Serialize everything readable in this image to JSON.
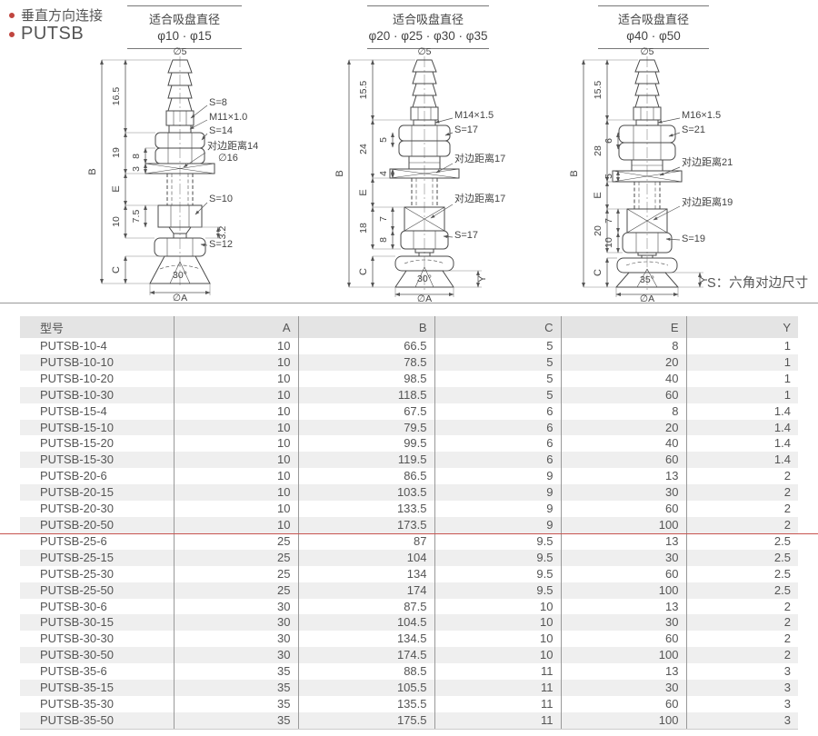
{
  "page": {
    "bullet1": "垂直方向连接",
    "bullet2": "PUTSB",
    "s_note": "S：六角对边尺寸"
  },
  "d1": {
    "title": "适合吸盘直径",
    "range": "φ10 · φ15",
    "top_dia": "∅5",
    "b": "B",
    "h1": "16.5",
    "h2": "19",
    "h2a": "8",
    "h2b": "3",
    "e": "E",
    "h3": "10",
    "h3a": "7.5",
    "h3b": "3.2",
    "c": "C",
    "s1": "S=8",
    "thread": "M11×1.0",
    "s2": "S=14",
    "flat": "对边距离14",
    "dia16": "∅16",
    "s3": "S=10",
    "s4": "S=12",
    "angle": "30°",
    "bot_dia": "∅A"
  },
  "d2": {
    "title": "适合吸盘直径",
    "range": "φ20 · φ25 · φ30 · φ35",
    "top_dia": "∅5",
    "b": "B",
    "h1": "15.5",
    "h2": "24",
    "h2a": "5",
    "h2b": "4",
    "e": "E",
    "h3": "18",
    "h3a": "7",
    "h3b": "8",
    "c": "C",
    "thread": "M14×1.5",
    "s1": "S=17",
    "flat1": "对边距离17",
    "flat2": "对边距离17",
    "s2": "S=17",
    "angle": "30°",
    "y": "Y",
    "bot_dia": "∅A"
  },
  "d3": {
    "title": "适合吸盘直径",
    "range": "φ40 · φ50",
    "top_dia": "∅5",
    "b": "B",
    "h1": "15.5",
    "h2": "28",
    "h2a": "6",
    "h2b": "5",
    "e": "E",
    "h3": "20",
    "h3a": "7",
    "h3b": "10",
    "c": "C",
    "thread": "M16×1.5",
    "s1": "S=21",
    "flat1": "对边距离21",
    "flat2": "对边距离19",
    "s2": "S=19",
    "angle": "35°",
    "y": "Y",
    "bot_dia": "∅A"
  },
  "table": {
    "columns": [
      "型号",
      "A",
      "B",
      "C",
      "E",
      "Y"
    ],
    "red_divider_after": "PUTSB-20-50",
    "rows": [
      [
        "PUTSB-10-4",
        "10",
        "66.5",
        "5",
        "8",
        "1"
      ],
      [
        "PUTSB-10-10",
        "10",
        "78.5",
        "5",
        "20",
        "1"
      ],
      [
        "PUTSB-10-20",
        "10",
        "98.5",
        "5",
        "40",
        "1"
      ],
      [
        "PUTSB-10-30",
        "10",
        "118.5",
        "5",
        "60",
        "1"
      ],
      [
        "PUTSB-15-4",
        "10",
        "67.5",
        "6",
        "8",
        "1.4"
      ],
      [
        "PUTSB-15-10",
        "10",
        "79.5",
        "6",
        "20",
        "1.4"
      ],
      [
        "PUTSB-15-20",
        "10",
        "99.5",
        "6",
        "40",
        "1.4"
      ],
      [
        "PUTSB-15-30",
        "10",
        "119.5",
        "6",
        "60",
        "1.4"
      ],
      [
        "PUTSB-20-6",
        "10",
        "86.5",
        "9",
        "13",
        "2"
      ],
      [
        "PUTSB-20-15",
        "10",
        "103.5",
        "9",
        "30",
        "2"
      ],
      [
        "PUTSB-20-30",
        "10",
        "133.5",
        "9",
        "60",
        "2"
      ],
      [
        "PUTSB-20-50",
        "10",
        "173.5",
        "9",
        "100",
        "2"
      ],
      [
        "PUTSB-25-6",
        "25",
        "87",
        "9.5",
        "13",
        "2.5"
      ],
      [
        "PUTSB-25-15",
        "25",
        "104",
        "9.5",
        "30",
        "2.5"
      ],
      [
        "PUTSB-25-30",
        "25",
        "134",
        "9.5",
        "60",
        "2.5"
      ],
      [
        "PUTSB-25-50",
        "25",
        "174",
        "9.5",
        "100",
        "2.5"
      ],
      [
        "PUTSB-30-6",
        "30",
        "87.5",
        "10",
        "13",
        "2"
      ],
      [
        "PUTSB-30-15",
        "30",
        "104.5",
        "10",
        "30",
        "2"
      ],
      [
        "PUTSB-30-30",
        "30",
        "134.5",
        "10",
        "60",
        "2"
      ],
      [
        "PUTSB-30-50",
        "30",
        "174.5",
        "10",
        "100",
        "2"
      ],
      [
        "PUTSB-35-6",
        "35",
        "88.5",
        "11",
        "13",
        "3"
      ],
      [
        "PUTSB-35-15",
        "35",
        "105.5",
        "11",
        "30",
        "3"
      ],
      [
        "PUTSB-35-30",
        "35",
        "135.5",
        "11",
        "60",
        "3"
      ],
      [
        "PUTSB-35-50",
        "35",
        "175.5",
        "11",
        "100",
        "3"
      ]
    ]
  }
}
